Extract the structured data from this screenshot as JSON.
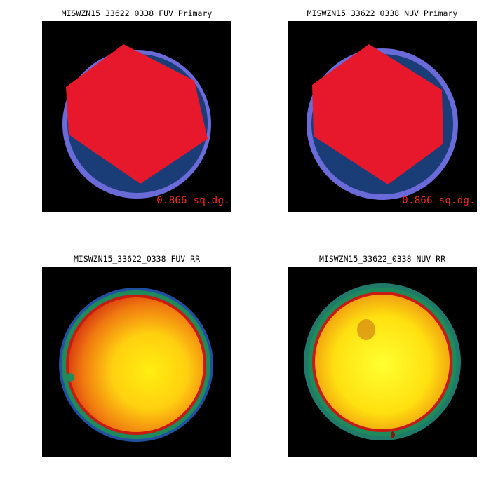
{
  "panels": [
    {
      "title": "MISWZN15_33622_0338 FUV Primary",
      "area_label": "0.866 sq.dg."
    },
    {
      "title": "MISWZN15_33622_0338 NUV Primary",
      "area_label": "0.866 sq.dg."
    },
    {
      "title": "MISWZN15_33622_0338 FUV RR"
    },
    {
      "title": "MISWZN15_33622_0338 NUV RR"
    }
  ],
  "colors": {
    "frame_background": "#000000",
    "ring": "#6a6ad8",
    "disc": "#1a3d78",
    "hexagon": "#e8182c",
    "area_label": "#ff2020",
    "rr_edge_green": "#1f8a5a",
    "rr_red": "#c81a10",
    "rr_yellow": "#ffee10"
  }
}
